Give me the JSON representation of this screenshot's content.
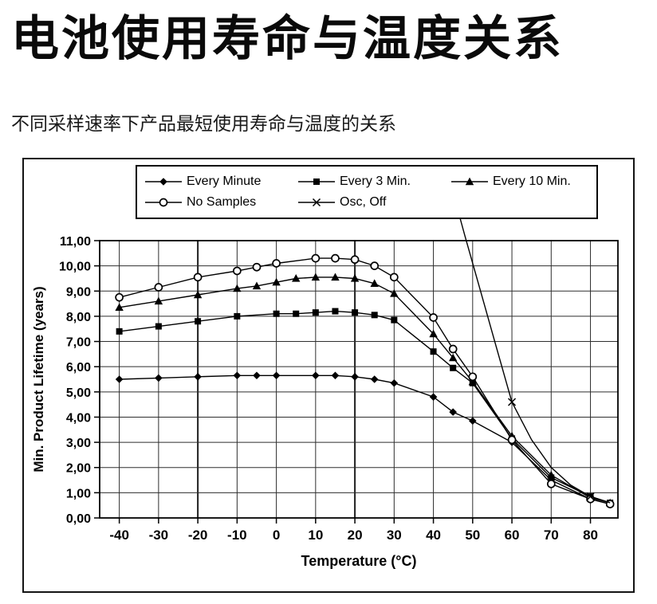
{
  "page": {
    "title": "电池使用寿命与温度关系",
    "subtitle": "不同采样速率下产品最短使用寿命与温度的关系"
  },
  "chart_data": {
    "type": "line",
    "title": "",
    "xlabel": "Temperature (°C)",
    "ylabel": "Min. Product Lifetime (years)",
    "xlim": [
      -45,
      87
    ],
    "ylim": [
      0,
      11
    ],
    "grid": true,
    "legend_position": "top",
    "x_ticks": [
      -40,
      -30,
      -20,
      -10,
      0,
      10,
      20,
      30,
      40,
      50,
      60,
      70,
      80
    ],
    "x_tick_labels": [
      "-40",
      "-30",
      "-20",
      "-10",
      "0",
      "10",
      "20",
      "30",
      "40",
      "50",
      "60",
      "70",
      "80"
    ],
    "thick_gridlines_x": [
      -20,
      20
    ],
    "y_ticks": [
      0,
      1,
      2,
      3,
      4,
      5,
      6,
      7,
      8,
      9,
      10,
      11
    ],
    "y_tick_labels": [
      "0,00",
      "1,00",
      "2,00",
      "3,00",
      "4,00",
      "5,00",
      "6,00",
      "7,00",
      "8,00",
      "9,00",
      "10,00",
      "11,00"
    ],
    "series": [
      {
        "name": "Every Minute",
        "marker": "diamond",
        "x": [
          -40,
          -30,
          -20,
          -10,
          -5,
          0,
          10,
          15,
          20,
          25,
          30,
          40,
          45,
          50,
          60,
          70,
          80,
          85
        ],
        "values": [
          5.5,
          5.55,
          5.6,
          5.65,
          5.65,
          5.65,
          5.65,
          5.65,
          5.6,
          5.5,
          5.35,
          4.8,
          4.2,
          3.85,
          3.0,
          1.5,
          0.75,
          0.55
        ]
      },
      {
        "name": "Every 3 Min.",
        "marker": "square",
        "x": [
          -40,
          -30,
          -20,
          -10,
          0,
          5,
          10,
          15,
          20,
          25,
          30,
          40,
          45,
          50,
          60,
          70,
          80,
          85
        ],
        "values": [
          7.4,
          7.6,
          7.8,
          8.0,
          8.1,
          8.1,
          8.15,
          8.2,
          8.15,
          8.05,
          7.85,
          6.6,
          5.95,
          5.35,
          3.15,
          1.6,
          0.85,
          0.6
        ]
      },
      {
        "name": "Every 10 Min.",
        "marker": "triangle",
        "x": [
          -40,
          -30,
          -20,
          -10,
          -5,
          0,
          5,
          10,
          15,
          20,
          25,
          30,
          40,
          45,
          50,
          60,
          70,
          80,
          85
        ],
        "values": [
          8.35,
          8.6,
          8.85,
          9.1,
          9.2,
          9.35,
          9.5,
          9.55,
          9.55,
          9.5,
          9.3,
          8.9,
          7.3,
          6.35,
          5.4,
          3.25,
          1.7,
          0.8,
          0.6
        ]
      },
      {
        "name": "No Samples",
        "marker": "circle-open",
        "x": [
          -40,
          -30,
          -20,
          -10,
          -5,
          0,
          10,
          15,
          20,
          25,
          30,
          40,
          45,
          50,
          60,
          70,
          80,
          85
        ],
        "values": [
          8.75,
          9.15,
          9.55,
          9.8,
          9.95,
          10.1,
          10.3,
          10.3,
          10.25,
          10.0,
          9.55,
          7.95,
          6.7,
          5.6,
          3.1,
          1.35,
          0.75,
          0.55
        ]
      },
      {
        "name": "Osc, Off",
        "marker": "x",
        "x": [
          44.5,
          48,
          52,
          56,
          60,
          65,
          70,
          75,
          80,
          85
        ],
        "values": [
          13.2,
          11.2,
          9.0,
          6.8,
          4.6,
          3.1,
          2.0,
          1.3,
          0.85,
          0.6
        ],
        "markers_at": [
          60,
          80
        ]
      }
    ]
  }
}
